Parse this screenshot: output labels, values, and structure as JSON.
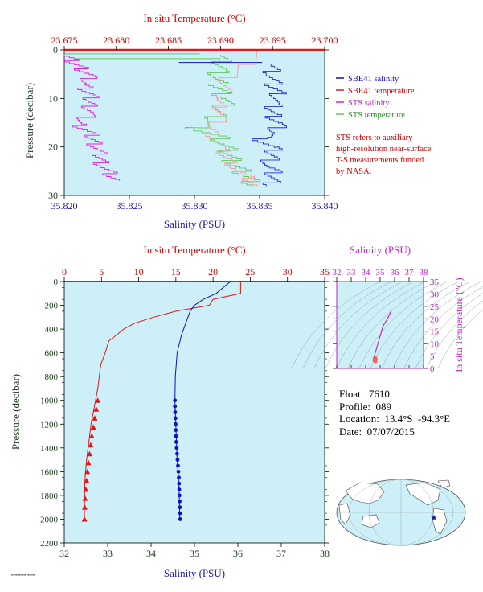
{
  "colors": {
    "plot_bg": "#cdeff8",
    "sbe_salinity": "#1010c8",
    "sbe_temperature": "#e01818",
    "sts_salinity": "#e020e0",
    "sts_temperature": "#60c860",
    "sts_temperature_light": "#f4a0a0",
    "red_label": "#d00000",
    "blue_label": "#1a1aa8",
    "green_label": "#204020",
    "magenta_label": "#c020c0"
  },
  "top": {
    "title_temp": "In situ Temperature (°C)",
    "xlabel_sal": "Salinity (PSU)",
    "ylabel": "Pressure (decibar)",
    "temp_ticks": [
      "23.675",
      "23.680",
      "23.685",
      "23.690",
      "23.695",
      "23.700"
    ],
    "sal_ticks": [
      "35.820",
      "35.825",
      "35.830",
      "35.835",
      "35.840"
    ],
    "p_ticks": [
      "0",
      "10",
      "20",
      "30"
    ],
    "legend": [
      {
        "label": "SBE41 salinity"
      },
      {
        "label": "SBE41 temperature"
      },
      {
        "label": "STS salinity"
      },
      {
        "label": "STS temperature"
      }
    ],
    "note": [
      "STS refers to auxiliary",
      "high-resolution near-surface",
      "T-S measurements funded",
      "by NASA."
    ]
  },
  "bottom": {
    "title_temp": "In situ Temperature (°C)",
    "xlabel_sal": "Salinity (PSU)",
    "ylabel": "Pressure (decibar)",
    "temp_ticks": [
      "0",
      "5",
      "10",
      "15",
      "20",
      "25",
      "30",
      "35"
    ],
    "sal_ticks": [
      "32",
      "33",
      "34",
      "35",
      "36",
      "37",
      "38"
    ],
    "p_ticks": [
      "0",
      "200",
      "400",
      "600",
      "800",
      "1000",
      "1200",
      "1400",
      "1600",
      "1800",
      "2000",
      "2200"
    ]
  },
  "ts": {
    "title": "Salinity (PSU)",
    "ylabel": "In situ Temperature (°C)",
    "sal_ticks": [
      "32",
      "33",
      "34",
      "35",
      "36",
      "37",
      "38"
    ],
    "temp_ticks": [
      "0",
      "5",
      "10",
      "15",
      "20",
      "25",
      "30",
      "35"
    ]
  },
  "info": {
    "float": "Float:  7610",
    "profile": "Profile:  089",
    "location": "Location:  13.4°S  -94.3°E",
    "date": "Date:  07/07/2015"
  },
  "chart_data": [
    {
      "type": "line",
      "title": "",
      "xlabel_top": "In situ Temperature (°C)",
      "xlabel_bottom": "Salinity (PSU)",
      "ylabel": "Pressure (decibar)",
      "xlim_temp": [
        23.675,
        23.7
      ],
      "xlim_sal": [
        35.82,
        35.84
      ],
      "ylim": [
        30,
        0
      ],
      "series": [
        {
          "name": "SBE41 salinity",
          "x": [
            35.836,
            35.836,
            35.836,
            35.8365,
            35.836,
            35.836,
            35.8365,
            35.836,
            35.835,
            35.836,
            35.836,
            35.8355,
            35.836,
            35.836,
            35.836
          ],
          "y": [
            3,
            5,
            7,
            9,
            11,
            13,
            15,
            17,
            18,
            20,
            22,
            24,
            25,
            26,
            28
          ]
        },
        {
          "name": "SBE41 temperature",
          "x": [
            23.694,
            23.6905,
            23.6905,
            23.6898,
            23.69,
            23.69,
            23.689,
            23.6895,
            23.69,
            23.6905,
            23.6915,
            23.6925,
            23.6935
          ],
          "y": [
            0.3,
            6,
            8,
            10,
            12,
            14,
            16,
            18,
            20,
            22,
            24,
            26,
            28
          ]
        },
        {
          "name": "STS salinity",
          "x": [
            35.82,
            35.821,
            35.822,
            35.8215,
            35.822,
            35.822,
            35.822,
            35.821,
            35.822,
            35.8225,
            35.823,
            35.824
          ],
          "y": [
            1,
            3,
            5,
            7,
            9,
            11,
            13,
            15,
            17,
            20,
            24,
            27
          ]
        },
        {
          "name": "STS temperature",
          "x": [
            23.69,
            23.69,
            23.6895,
            23.69,
            23.6905,
            23.69,
            23.6895,
            23.6875,
            23.69,
            23.6905,
            23.6915,
            23.6935
          ],
          "y": [
            1,
            4,
            6,
            8,
            10,
            12,
            14,
            16,
            18,
            20,
            24,
            28
          ]
        }
      ]
    },
    {
      "type": "line",
      "title": "",
      "xlabel_top": "In situ Temperature (°C)",
      "xlabel_bottom": "Salinity (PSU)",
      "ylabel": "Pressure (decibar)",
      "xlim_temp": [
        0,
        35
      ],
      "xlim_sal": [
        32,
        38
      ],
      "ylim": [
        2200,
        0
      ],
      "series": [
        {
          "name": "temperature",
          "x": [
            23.7,
            23.7,
            20,
            19.5,
            15,
            12,
            9.5,
            8,
            7,
            6,
            5.5,
            4.9,
            4.7,
            4.5,
            4.2,
            3.9,
            3.6,
            3.4,
            3.2,
            3.0,
            2.85,
            2.75,
            2.7
          ],
          "y": [
            0,
            100,
            150,
            200,
            250,
            300,
            350,
            400,
            450,
            500,
            600,
            700,
            800,
            900,
            1000,
            1100,
            1200,
            1300,
            1400,
            1500,
            1600,
            1700,
            2000
          ]
        },
        {
          "name": "salinity",
          "x": [
            35.83,
            35.5,
            35.2,
            35.0,
            34.9,
            34.85,
            34.8,
            34.75,
            34.7,
            34.6,
            34.56,
            34.55,
            34.56,
            34.57,
            34.58,
            34.6,
            34.62,
            34.64,
            34.65,
            34.66
          ],
          "y": [
            0,
            100,
            150,
            200,
            250,
            300,
            350,
            400,
            450,
            600,
            800,
            1000,
            1100,
            1200,
            1300,
            1500,
            1600,
            1700,
            1800,
            2000
          ]
        },
        {
          "name": "temperature samples",
          "x": [
            4.5,
            4.3,
            4.1,
            3.9,
            3.7,
            3.55,
            3.4,
            3.25,
            3.1,
            3.0,
            2.9,
            2.8,
            2.75,
            2.72
          ],
          "y": [
            1000,
            1075,
            1150,
            1225,
            1300,
            1375,
            1450,
            1525,
            1600,
            1675,
            1750,
            1825,
            1900,
            2000
          ]
        },
        {
          "name": "salinity samples",
          "x": [
            34.55,
            34.55,
            34.555,
            34.56,
            34.565,
            34.57,
            34.575,
            34.58,
            34.59,
            34.6,
            34.61,
            34.62,
            34.63,
            34.64,
            34.645,
            34.65,
            34.655,
            34.66,
            34.665,
            34.67,
            34.67
          ],
          "y": [
            1000,
            1050,
            1100,
            1150,
            1200,
            1250,
            1300,
            1350,
            1400,
            1450,
            1500,
            1550,
            1600,
            1650,
            1700,
            1750,
            1800,
            1850,
            1900,
            1950,
            2000
          ]
        }
      ]
    },
    {
      "type": "line",
      "title": "Salinity (PSU)",
      "xlabel": "Salinity (PSU)",
      "ylabel": "In situ Temperature (°C)",
      "xlim": [
        32,
        38
      ],
      "ylim": [
        0,
        35
      ],
      "series": [
        {
          "name": "T-S",
          "x": [
            35.8,
            35.6,
            35.4,
            35.2,
            35.1,
            35.0,
            34.9,
            34.8,
            34.75,
            34.7,
            34.65,
            34.6,
            34.6,
            34.65,
            34.7,
            34.65,
            34.6
          ],
          "y": [
            23.7,
            21,
            19,
            17,
            15,
            13,
            11,
            9,
            8,
            7,
            6,
            5,
            4.5,
            4,
            3.5,
            3,
            2.7
          ]
        }
      ]
    }
  ]
}
